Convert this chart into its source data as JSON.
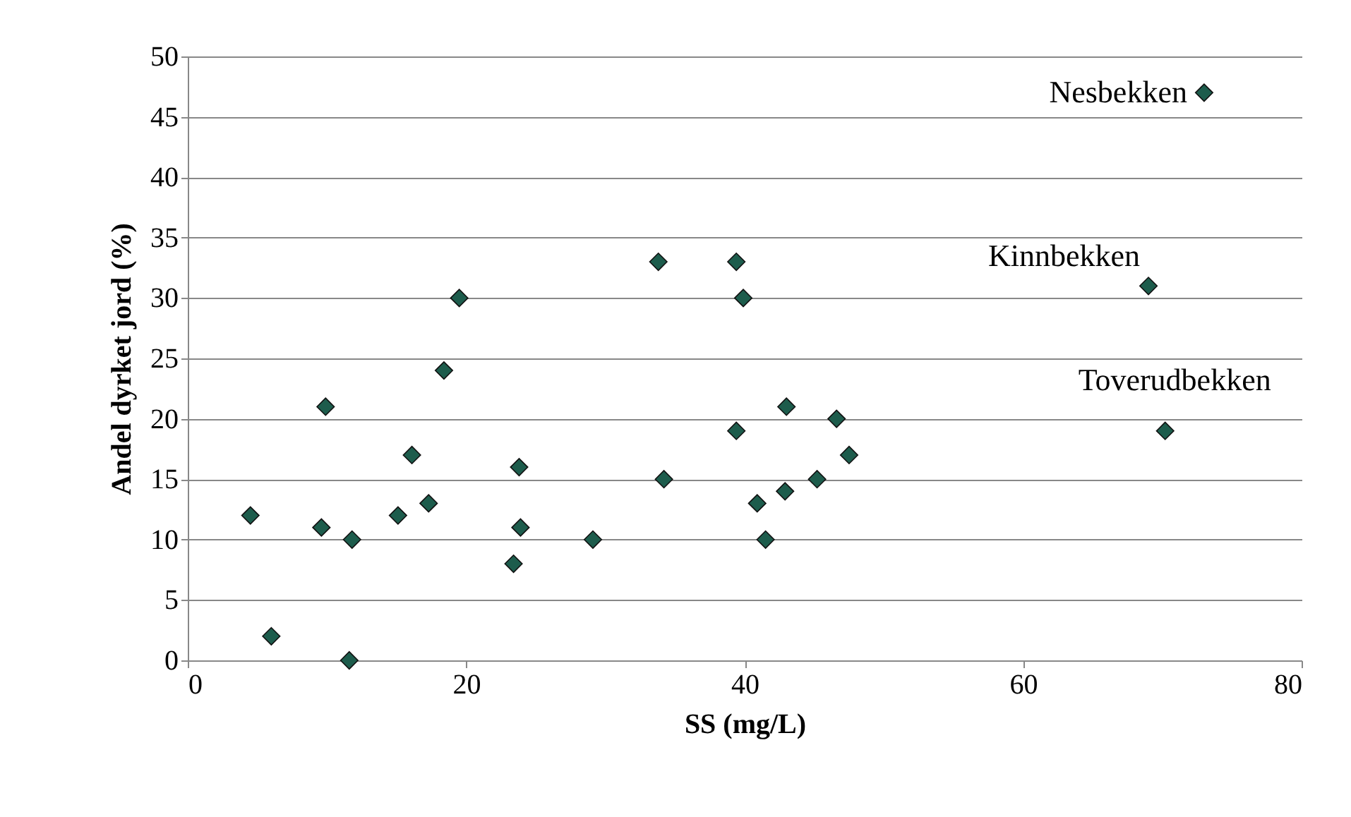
{
  "chart_data": {
    "type": "scatter",
    "xlabel": "SS (mg/L)",
    "ylabel": "Andel dyrket jord (%)",
    "x": [
      4.5,
      6,
      9.6,
      9.9,
      11.8,
      11.6,
      15.1,
      16.1,
      17.3,
      18.4,
      19.5,
      23.4,
      23.8,
      23.9,
      29.1,
      33.8,
      34.2,
      39.4,
      39.4,
      39.9,
      40.9,
      41.5,
      42.9,
      43,
      45.2,
      46.6,
      47.5,
      69,
      70.2,
      73
    ],
    "series": [
      {
        "color": "#1d5c4c",
        "values": [
          12,
          2,
          11,
          21,
          10,
          0,
          12,
          17,
          13,
          24,
          30,
          8,
          16,
          11,
          10,
          33,
          15,
          33,
          19,
          30,
          13,
          10,
          14,
          21,
          15,
          20,
          17,
          31,
          19,
          47
        ]
      }
    ],
    "xlim": [
      0,
      80
    ],
    "xticks": [
      0,
      20,
      40,
      60,
      80
    ],
    "ylim": [
      0,
      50
    ],
    "yticks": [
      0,
      5,
      10,
      15,
      20,
      25,
      30,
      35,
      40,
      45,
      50
    ],
    "grid": "y",
    "marker": "diamond",
    "annotations": [
      {
        "text": "Nesbekken",
        "x": 73,
        "y": 47
      },
      {
        "text": "Kinnbekken",
        "x": 69,
        "y": 31
      },
      {
        "text": "Toverudbekken",
        "x": 70.2,
        "y": 19
      }
    ]
  }
}
